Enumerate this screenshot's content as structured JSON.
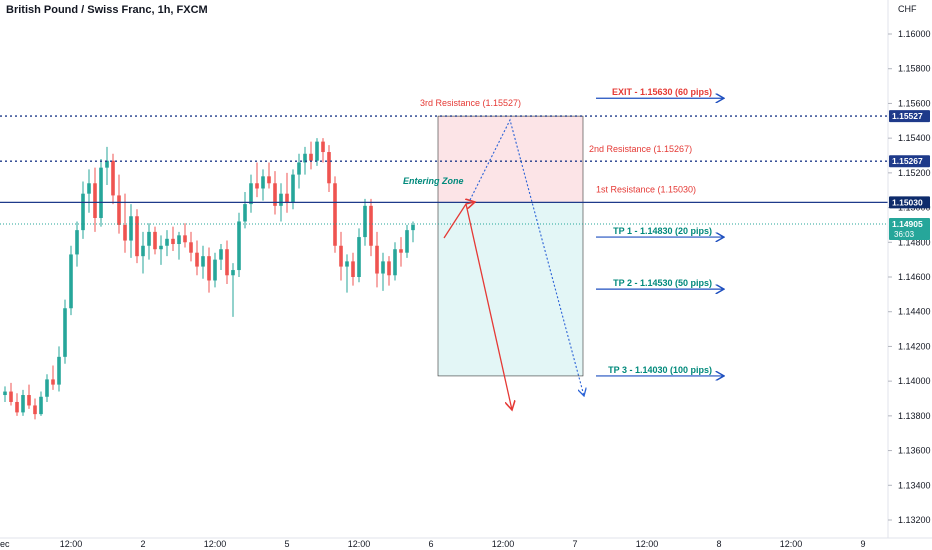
{
  "header": {
    "symbol_title": "British Pound / Swiss Franc, 1h, FXCM",
    "currency": "CHF"
  },
  "colors": {
    "up": "#26a69a",
    "down": "#ef5350",
    "entry_line": "#1e3a8a",
    "dotted_line": "#1e3a8a",
    "resistance_text": "#e53935",
    "tp_text": "#00897b",
    "arrow": "#1e4fbf",
    "loss_box": "#fce4e7",
    "profit_box": "#e3f6f6",
    "red_arrow": "#e53935",
    "projection": "#2a62d6"
  },
  "chart_data": {
    "type": "candlestick",
    "title": "British Pound / Swiss Franc, 1h, FXCM",
    "yaxis_unit": "CHF",
    "ylim": [
      1.131,
      1.1622
    ],
    "y_ticks": [
      "1.16000",
      "1.15800",
      "1.15600",
      "1.15400",
      "1.15200",
      "1.15000",
      "1.14800",
      "1.14600",
      "1.14400",
      "1.14200",
      "1.14000",
      "1.13800",
      "1.13600",
      "1.13400",
      "1.13200"
    ],
    "x_ticks": [
      "ec",
      "12:00",
      "2",
      "12:00",
      "5",
      "12:00",
      "6",
      "12:00",
      "7",
      "12:00",
      "8",
      "12:00",
      "9"
    ],
    "candles": [
      [
        1.1392,
        1.1397,
        1.1388,
        1.1394
      ],
      [
        1.1394,
        1.1399,
        1.1386,
        1.1388
      ],
      [
        1.1388,
        1.1393,
        1.138,
        1.1382
      ],
      [
        1.1382,
        1.1395,
        1.138,
        1.1392
      ],
      [
        1.1392,
        1.1398,
        1.1384,
        1.1386
      ],
      [
        1.1386,
        1.139,
        1.1378,
        1.1381
      ],
      [
        1.1381,
        1.1394,
        1.138,
        1.1391
      ],
      [
        1.1391,
        1.1404,
        1.1388,
        1.1401
      ],
      [
        1.1401,
        1.1409,
        1.1395,
        1.1398
      ],
      [
        1.1398,
        1.142,
        1.1394,
        1.1414
      ],
      [
        1.1414,
        1.1447,
        1.141,
        1.1442
      ],
      [
        1.1442,
        1.1478,
        1.1438,
        1.1473
      ],
      [
        1.1473,
        1.1492,
        1.1466,
        1.1487
      ],
      [
        1.1487,
        1.1515,
        1.1482,
        1.1508
      ],
      [
        1.1508,
        1.1522,
        1.1497,
        1.1514
      ],
      [
        1.1514,
        1.1523,
        1.1486,
        1.1494
      ],
      [
        1.1494,
        1.1528,
        1.1489,
        1.1523
      ],
      [
        1.1523,
        1.1535,
        1.1513,
        1.1527
      ],
      [
        1.1527,
        1.1531,
        1.1502,
        1.1507
      ],
      [
        1.1507,
        1.1519,
        1.1485,
        1.149
      ],
      [
        1.149,
        1.1508,
        1.1474,
        1.1481
      ],
      [
        1.1481,
        1.1502,
        1.1471,
        1.1495
      ],
      [
        1.1495,
        1.1499,
        1.1468,
        1.1472
      ],
      [
        1.1472,
        1.1486,
        1.1462,
        1.1478
      ],
      [
        1.1478,
        1.1491,
        1.147,
        1.1486
      ],
      [
        1.1486,
        1.1489,
        1.1473,
        1.1476
      ],
      [
        1.1476,
        1.1484,
        1.1467,
        1.1478
      ],
      [
        1.1478,
        1.1487,
        1.1472,
        1.1482
      ],
      [
        1.1482,
        1.1489,
        1.1475,
        1.1479
      ],
      [
        1.1479,
        1.1486,
        1.147,
        1.1484
      ],
      [
        1.1484,
        1.1491,
        1.1477,
        1.148
      ],
      [
        1.148,
        1.1486,
        1.1469,
        1.1474
      ],
      [
        1.1474,
        1.1481,
        1.1461,
        1.1466
      ],
      [
        1.1466,
        1.1478,
        1.1459,
        1.1472
      ],
      [
        1.1472,
        1.1477,
        1.1451,
        1.1458
      ],
      [
        1.1458,
        1.1474,
        1.1454,
        1.147
      ],
      [
        1.147,
        1.1479,
        1.1464,
        1.1476
      ],
      [
        1.1476,
        1.1481,
        1.1456,
        1.1461
      ],
      [
        1.1461,
        1.1468,
        1.1437,
        1.1464
      ],
      [
        1.1464,
        1.1497,
        1.146,
        1.1492
      ],
      [
        1.1492,
        1.1509,
        1.1488,
        1.1502
      ],
      [
        1.1502,
        1.1519,
        1.1497,
        1.1514
      ],
      [
        1.1514,
        1.1526,
        1.1506,
        1.1511
      ],
      [
        1.1511,
        1.1522,
        1.1504,
        1.1518
      ],
      [
        1.1518,
        1.1526,
        1.1511,
        1.1514
      ],
      [
        1.1514,
        1.1521,
        1.1496,
        1.1501
      ],
      [
        1.1501,
        1.1514,
        1.1492,
        1.1508
      ],
      [
        1.1508,
        1.152,
        1.1497,
        1.1503
      ],
      [
        1.1503,
        1.1522,
        1.1499,
        1.1519
      ],
      [
        1.1519,
        1.1531,
        1.1511,
        1.1526
      ],
      [
        1.1526,
        1.1535,
        1.1519,
        1.1531
      ],
      [
        1.1531,
        1.1538,
        1.1522,
        1.1527
      ],
      [
        1.1527,
        1.154,
        1.1524,
        1.1538
      ],
      [
        1.1538,
        1.154,
        1.1526,
        1.1532
      ],
      [
        1.1532,
        1.1536,
        1.1509,
        1.1514
      ],
      [
        1.1514,
        1.1518,
        1.1474,
        1.1478
      ],
      [
        1.1478,
        1.1486,
        1.1458,
        1.1466
      ],
      [
        1.1466,
        1.1473,
        1.1451,
        1.1469
      ],
      [
        1.1469,
        1.1474,
        1.1455,
        1.146
      ],
      [
        1.146,
        1.1488,
        1.1457,
        1.1483
      ],
      [
        1.1483,
        1.1505,
        1.1478,
        1.1501
      ],
      [
        1.1501,
        1.1505,
        1.1472,
        1.1478
      ],
      [
        1.1478,
        1.1486,
        1.1454,
        1.1462
      ],
      [
        1.1462,
        1.1474,
        1.1452,
        1.1469
      ],
      [
        1.1469,
        1.1472,
        1.1455,
        1.1461
      ],
      [
        1.1461,
        1.148,
        1.1458,
        1.1476
      ],
      [
        1.1476,
        1.1483,
        1.1466,
        1.1474
      ],
      [
        1.1474,
        1.149,
        1.1471,
        1.1487
      ],
      [
        1.1487,
        1.1492,
        1.148,
        1.149
      ]
    ],
    "levels": {
      "resistance_3": {
        "value": 1.15527,
        "label": "1.15527",
        "annotation": "3rd Resistance (1.15527)"
      },
      "resistance_2": {
        "value": 1.15267,
        "label": "1.15267",
        "annotation": "2nd Resistance (1.15267)"
      },
      "resistance_1": {
        "value": 1.1503,
        "label": "1.15030",
        "annotation": "1st Resistance  (1.15030)"
      },
      "current_price": {
        "value": 1.14905,
        "label": "1.14905",
        "countdown": "36:03"
      }
    },
    "targets": [
      {
        "value": 1.1563,
        "label": "EXIT - 1.15630 (60 pips)",
        "kind": "exit"
      },
      {
        "value": 1.1483,
        "label": "TP 1 - 1.14830 (20 pips)",
        "kind": "tp"
      },
      {
        "value": 1.1453,
        "label": "TP 2 - 1.14530 (50 pips)",
        "kind": "tp"
      },
      {
        "value": 1.1403,
        "label": "TP 3 - 1.14030 (100 pips)",
        "kind": "tp"
      }
    ],
    "entering_zone_label": "Entering Zone",
    "position_box": {
      "stop": 1.15527,
      "entry": 1.1503,
      "target": 1.1403
    }
  }
}
